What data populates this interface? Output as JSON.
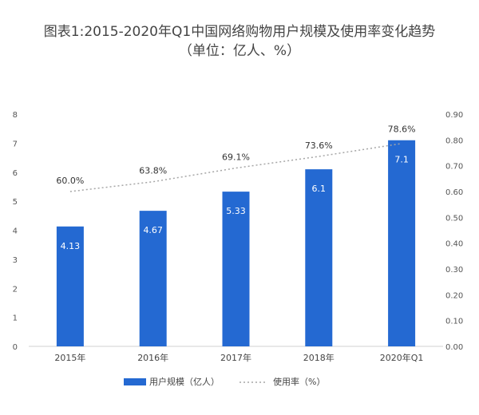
{
  "chart_data": {
    "type": "bar",
    "title": "图表1:2015-2020年Q1中国网络购物用户规模及使用率变化趋势（单位：亿人、%）",
    "categories": [
      "2015年",
      "2016年",
      "2017年",
      "2018年",
      "2020年Q1"
    ],
    "series": [
      {
        "name": "用户规模（亿人）",
        "type": "bar",
        "axis": "left",
        "values": [
          4.13,
          4.67,
          5.33,
          6.1,
          7.1
        ],
        "value_labels": [
          "4.13",
          "4.67",
          "5.33",
          "6.1",
          "7.1"
        ],
        "color": "#2469d2"
      },
      {
        "name": "使用率（%）",
        "type": "line",
        "axis": "right",
        "style": "dotted",
        "values": [
          0.6,
          0.638,
          0.691,
          0.736,
          0.786
        ],
        "value_labels": [
          "60.0%",
          "63.8%",
          "69.1%",
          "73.6%",
          "78.6%"
        ],
        "color": "#a6a6a6"
      }
    ],
    "y_left": {
      "min": 0,
      "max": 8,
      "ticks": [
        "0",
        "1",
        "2",
        "3",
        "4",
        "5",
        "6",
        "7",
        "8"
      ]
    },
    "y_right": {
      "min": 0,
      "max": 0.9,
      "ticks": [
        "0.00",
        "0.10",
        "0.20",
        "0.30",
        "0.40",
        "0.50",
        "0.60",
        "0.70",
        "0.80",
        "0.90"
      ]
    },
    "grid": false,
    "legend_position": "bottom"
  }
}
